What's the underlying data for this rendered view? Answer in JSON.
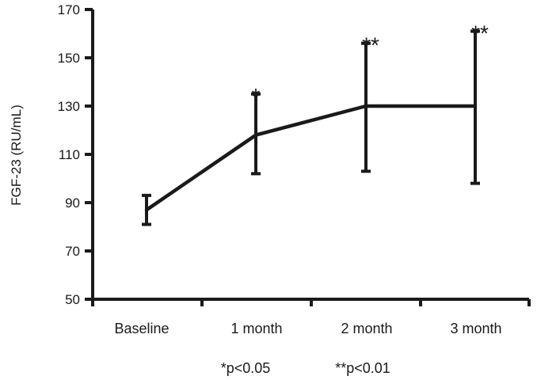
{
  "chart_data": {
    "type": "line",
    "categories": [
      "Baseline",
      "1 month",
      "2 month",
      "3 month"
    ],
    "series": [
      {
        "values": [
          87,
          118,
          130,
          130
        ],
        "error_low": [
          81,
          102,
          103,
          98
        ],
        "error_high": [
          93,
          135,
          156,
          161
        ],
        "significance": [
          "",
          "*",
          "**",
          "**"
        ]
      }
    ],
    "ylabel": "FGF-23 (RU/mL)",
    "xlabel": "",
    "ylim": [
      50,
      170
    ],
    "yticks": [
      50,
      70,
      90,
      110,
      130,
      150,
      170
    ],
    "notes": [
      "*p<0.05",
      "**p<0.01"
    ],
    "grid": false,
    "legend": "none",
    "color": "#1a1a1a"
  }
}
